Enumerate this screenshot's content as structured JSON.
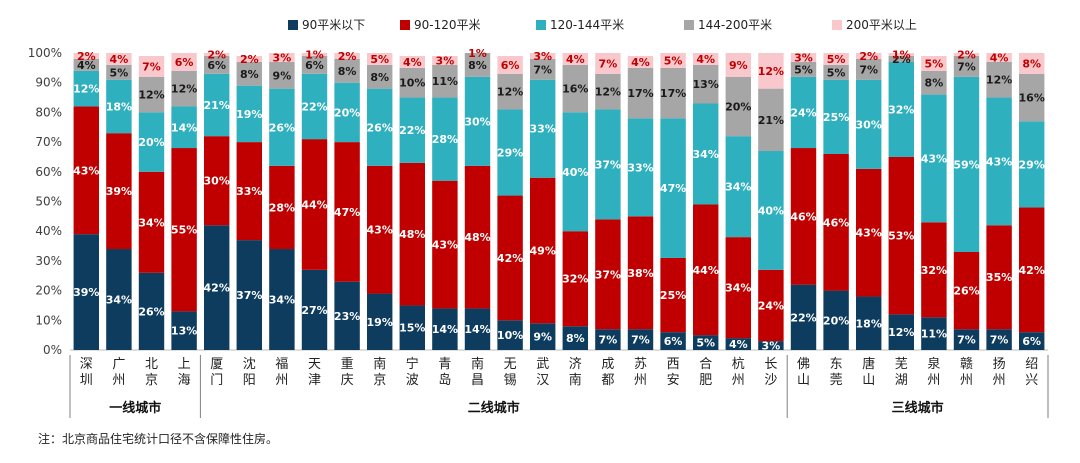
{
  "chart_data": {
    "type": "bar",
    "stacked": true,
    "ylim": [
      0,
      100
    ],
    "yticks": [
      "0%",
      "10%",
      "20%",
      "30%",
      "40%",
      "50%",
      "60%",
      "70%",
      "80%",
      "90%",
      "100%"
    ],
    "legend_position": "top",
    "categories": [
      "深圳",
      "广州",
      "北京",
      "上海",
      "厦门",
      "沈阳",
      "福州",
      "天津",
      "重庆",
      "南京",
      "宁波",
      "青岛",
      "南昌",
      "无锡",
      "武汉",
      "济南",
      "成都",
      "苏州",
      "西安",
      "合肥",
      "杭州",
      "长沙",
      "佛山",
      "东莞",
      "唐山",
      "芜湖",
      "泉州",
      "赣州",
      "扬州",
      "绍兴"
    ],
    "series": [
      {
        "name": "90平米以下",
        "color": "#0d3c5e",
        "values": [
          39,
          34,
          26,
          13,
          42,
          37,
          34,
          27,
          23,
          19,
          15,
          14,
          14,
          10,
          9,
          8,
          7,
          7,
          6,
          5,
          4,
          3,
          22,
          20,
          18,
          12,
          11,
          7,
          7,
          6
        ]
      },
      {
        "name": "90-120平米",
        "color": "#c00000",
        "values": [
          43,
          39,
          34,
          55,
          30,
          33,
          28,
          44,
          47,
          43,
          48,
          43,
          48,
          42,
          49,
          32,
          37,
          38,
          25,
          44,
          34,
          24,
          46,
          46,
          43,
          53,
          32,
          26,
          35,
          42
        ]
      },
      {
        "name": "120-144平米",
        "color": "#2fb0be",
        "values": [
          12,
          18,
          20,
          14,
          21,
          19,
          26,
          22,
          20,
          26,
          22,
          28,
          30,
          29,
          33,
          40,
          37,
          33,
          47,
          34,
          34,
          40,
          24,
          25,
          30,
          32,
          43,
          59,
          43,
          29
        ]
      },
      {
        "name": "144-200平米",
        "color": "#a6a6a6",
        "values": [
          4,
          5,
          12,
          12,
          6,
          8,
          9,
          6,
          8,
          8,
          10,
          11,
          8,
          12,
          7,
          16,
          12,
          17,
          17,
          13,
          20,
          21,
          5,
          5,
          7,
          2,
          8,
          7,
          12,
          16
        ]
      },
      {
        "name": "200平米以上",
        "color": "#f8c8cc",
        "values": [
          2,
          4,
          7,
          6,
          2,
          2,
          3,
          1,
          2,
          5,
          4,
          3,
          1,
          6,
          3,
          4,
          7,
          4,
          5,
          4,
          9,
          12,
          3,
          5,
          2,
          1,
          5,
          2,
          4,
          8
        ]
      }
    ],
    "groups": [
      {
        "label": "一线城市",
        "start": 0,
        "end": 3
      },
      {
        "label": "二线城市",
        "start": 4,
        "end": 21
      },
      {
        "label": "三线城市",
        "start": 22,
        "end": 29
      }
    ]
  },
  "note": "注：北京商品住宅统计口径不含保障性住房。"
}
